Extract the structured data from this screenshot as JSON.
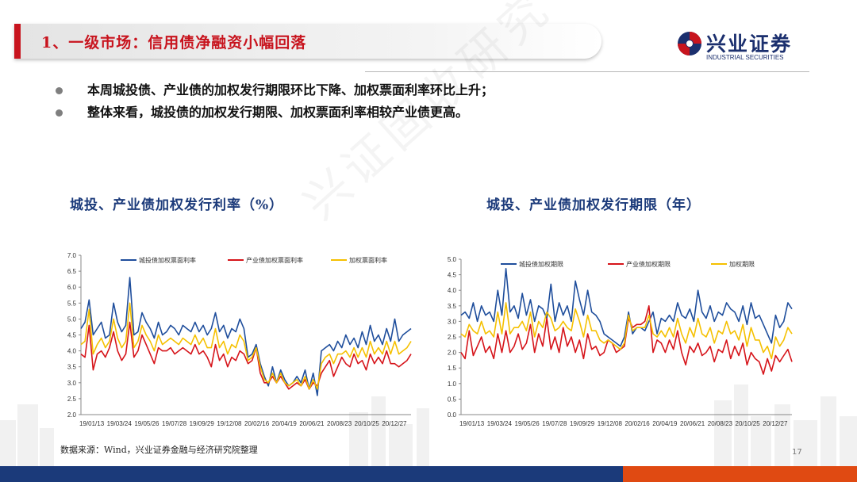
{
  "header": {
    "title": "1、一级市场：信用债净融资小幅回落",
    "logo_cn": "兴业证券",
    "logo_en": "INDUSTRIAL SECURITIES"
  },
  "bullets": [
    "本周城投债、产业债的加权发行期限环比下降、加权票面利率环比上升；",
    "整体来看，城投债的加权发行期限、加权票面利率相较产业债更高。"
  ],
  "watermark": "兴证固收研究",
  "source": "数据来源：Wind，兴业证券金融与经济研究院整理",
  "page_number": "17",
  "colors": {
    "blue": "#1f4e9c",
    "red": "#d6141a",
    "yellow": "#f5c000",
    "title_red": "#c8141e",
    "navy": "#1b3a7a"
  },
  "chart_data": [
    {
      "type": "line",
      "title": "城投、产业债加权发行利率（%）",
      "ylim": [
        2.0,
        7.0
      ],
      "yticks": [
        "2.0",
        "2.5",
        "3.0",
        "3.5",
        "4.0",
        "4.5",
        "5.0",
        "5.5",
        "6.0",
        "6.5",
        "7.0"
      ],
      "xticks": [
        "19/01/13",
        "19/03/24",
        "19/05/26",
        "19/07/28",
        "19/09/29",
        "19/12/08",
        "20/02/16",
        "20/04/19",
        "20/06/21",
        "20/08/23",
        "20/10/25",
        "20/12/27"
      ],
      "legend_position": "top",
      "grid": false,
      "series": [
        {
          "name": "城投债加权票面利率",
          "color": "#1f4e9c",
          "values": [
            4.7,
            4.9,
            5.6,
            4.5,
            4.7,
            4.9,
            4.4,
            4.5,
            5.5,
            4.9,
            4.6,
            4.8,
            6.3,
            4.5,
            4.6,
            5.2,
            4.9,
            4.7,
            4.4,
            4.9,
            4.5,
            4.6,
            4.8,
            4.7,
            4.5,
            4.8,
            4.7,
            4.6,
            4.9,
            4.6,
            4.8,
            4.5,
            4.7,
            5.2,
            4.6,
            4.8,
            4.4,
            4.7,
            4.6,
            5.0,
            4.7,
            3.8,
            3.9,
            4.2,
            3.6,
            3.2,
            2.9,
            3.5,
            3.0,
            3.4,
            3.1,
            2.9,
            3.0,
            3.2,
            3.0,
            3.4,
            2.8,
            3.3,
            2.6,
            4.0,
            4.1,
            4.2,
            4.0,
            4.3,
            4.1,
            4.5,
            4.2,
            4.4,
            4.1,
            4.6,
            4.2,
            4.8,
            4.3,
            4.5,
            4.2,
            4.7,
            4.3,
            5.0,
            4.3,
            4.5,
            4.6,
            4.7
          ]
        },
        {
          "name": "产业债加权票面利率",
          "color": "#d6141a",
          "values": [
            3.9,
            3.8,
            4.8,
            3.4,
            3.9,
            4.0,
            3.8,
            4.1,
            4.6,
            4.0,
            3.7,
            3.9,
            4.9,
            3.8,
            4.0,
            4.5,
            4.2,
            3.9,
            3.6,
            4.1,
            4.0,
            4.0,
            4.1,
            3.9,
            4.0,
            4.1,
            4.0,
            3.9,
            4.2,
            3.9,
            4.0,
            3.8,
            3.5,
            4.2,
            3.7,
            3.9,
            3.5,
            3.8,
            3.7,
            4.0,
            3.9,
            3.6,
            3.7,
            4.1,
            3.3,
            3.0,
            3.0,
            3.2,
            3.0,
            3.2,
            3.0,
            2.8,
            2.9,
            3.0,
            2.9,
            3.1,
            2.8,
            3.0,
            2.9,
            3.3,
            3.5,
            3.7,
            3.2,
            3.5,
            3.8,
            3.6,
            3.5,
            3.9,
            3.6,
            3.7,
            3.4,
            3.9,
            3.6,
            3.8,
            3.6,
            4.0,
            3.6,
            3.6,
            3.5,
            3.6,
            3.7,
            3.9
          ]
        },
        {
          "name": "加权票面利率",
          "color": "#f5c000",
          "values": [
            4.2,
            4.3,
            5.3,
            3.9,
            4.2,
            4.4,
            4.1,
            4.3,
            5.0,
            4.4,
            4.1,
            4.3,
            5.5,
            4.1,
            4.3,
            4.8,
            4.5,
            4.3,
            4.0,
            4.5,
            4.2,
            4.3,
            4.4,
            4.3,
            4.2,
            4.4,
            4.3,
            4.2,
            4.5,
            4.2,
            4.4,
            4.1,
            4.1,
            4.7,
            4.1,
            4.3,
            3.9,
            4.2,
            4.1,
            4.5,
            4.3,
            3.7,
            3.8,
            4.1,
            3.5,
            3.1,
            3.0,
            3.3,
            3.0,
            3.3,
            3.0,
            2.9,
            3.0,
            3.1,
            2.9,
            3.2,
            2.8,
            3.1,
            2.8,
            3.6,
            3.8,
            3.9,
            3.6,
            3.9,
            3.9,
            4.0,
            3.8,
            4.1,
            3.8,
            4.1,
            3.8,
            4.3,
            3.9,
            4.1,
            3.9,
            4.3,
            3.9,
            4.3,
            3.9,
            4.0,
            4.1,
            4.3
          ]
        }
      ]
    },
    {
      "type": "line",
      "title": "城投、产业债加权发行期限（年）",
      "ylim": [
        0.0,
        5.0
      ],
      "yticks": [
        "0.0",
        "0.5",
        "1.0",
        "1.5",
        "2.0",
        "2.5",
        "3.0",
        "3.5",
        "4.0",
        "4.5",
        "5.0"
      ],
      "xticks": [
        "19/01/13",
        "19/03/24",
        "19/05/26",
        "19/07/28",
        "19/09/29",
        "19/12/08",
        "20/02/16",
        "20/04/19",
        "20/06/21",
        "20/08/23",
        "20/10/25",
        "20/12/27"
      ],
      "legend_position": "top",
      "grid": false,
      "series": [
        {
          "name": "城投债加权期限",
          "color": "#1f4e9c",
          "values": [
            3.2,
            3.3,
            3.1,
            3.6,
            3.0,
            3.5,
            3.2,
            3.3,
            3.0,
            4.0,
            3.2,
            4.7,
            3.3,
            3.5,
            3.1,
            3.9,
            3.2,
            3.7,
            3.0,
            3.5,
            3.4,
            3.1,
            4.2,
            3.0,
            3.6,
            3.2,
            3.5,
            3.0,
            4.3,
            3.7,
            3.2,
            4.0,
            3.3,
            3.2,
            3.0,
            2.6,
            2.5,
            2.4,
            2.3,
            2.2,
            2.5,
            3.3,
            2.6,
            2.8,
            2.8,
            2.7,
            3.0,
            3.3,
            2.6,
            3.1,
            3.0,
            3.2,
            3.0,
            3.6,
            3.2,
            3.1,
            3.4,
            3.0,
            4.0,
            3.3,
            3.1,
            3.5,
            3.0,
            3.3,
            3.2,
            3.6,
            3.4,
            3.3,
            3.0,
            3.5,
            2.9,
            3.6,
            3.1,
            3.2,
            2.9,
            2.6,
            2.3,
            3.2,
            2.8,
            3.0,
            3.6,
            3.4
          ]
        },
        {
          "name": "产业债加权期限",
          "color": "#d6141a",
          "values": [
            2.0,
            1.8,
            2.7,
            1.9,
            2.2,
            2.5,
            2.0,
            2.2,
            1.8,
            2.6,
            2.0,
            2.7,
            2.0,
            2.2,
            2.6,
            2.1,
            2.3,
            2.9,
            2.0,
            2.6,
            2.2,
            3.1,
            2.1,
            2.5,
            2.0,
            2.8,
            2.2,
            2.5,
            2.0,
            2.4,
            1.8,
            2.6,
            2.1,
            2.2,
            1.9,
            2.0,
            2.4,
            2.3,
            2.0,
            2.1,
            2.2,
            3.1,
            2.8,
            2.9,
            2.9,
            3.0,
            3.5,
            2.0,
            2.4,
            2.3,
            2.0,
            2.4,
            2.1,
            2.7,
            2.0,
            1.6,
            2.2,
            2.0,
            2.3,
            1.9,
            2.0,
            2.2,
            1.7,
            2.1,
            2.0,
            2.4,
            1.8,
            2.2,
            1.9,
            2.3,
            1.6,
            2.0,
            1.8,
            1.7,
            1.3,
            1.8,
            1.4,
            1.9,
            1.7,
            1.9,
            2.1,
            1.7
          ]
        },
        {
          "name": "加权期限",
          "color": "#f5c000",
          "values": [
            2.6,
            2.5,
            2.9,
            2.7,
            2.6,
            3.0,
            2.6,
            2.7,
            2.5,
            3.3,
            2.6,
            3.6,
            2.6,
            2.8,
            2.8,
            3.0,
            2.7,
            3.3,
            2.5,
            3.0,
            2.8,
            3.3,
            3.1,
            2.7,
            2.8,
            3.0,
            2.8,
            2.7,
            3.4,
            3.0,
            2.5,
            3.2,
            2.7,
            2.7,
            2.4,
            2.3,
            2.4,
            2.3,
            2.2,
            2.1,
            2.3,
            3.2,
            2.7,
            2.8,
            2.8,
            2.8,
            3.2,
            2.6,
            2.5,
            2.7,
            2.5,
            2.8,
            2.5,
            3.1,
            2.6,
            2.3,
            2.8,
            2.5,
            3.1,
            2.6,
            2.5,
            2.8,
            2.3,
            2.7,
            2.6,
            3.0,
            2.6,
            2.7,
            2.4,
            2.9,
            2.2,
            2.8,
            2.4,
            2.4,
            2.0,
            2.2,
            1.8,
            2.5,
            2.2,
            2.4,
            2.8,
            2.6
          ]
        }
      ]
    }
  ]
}
